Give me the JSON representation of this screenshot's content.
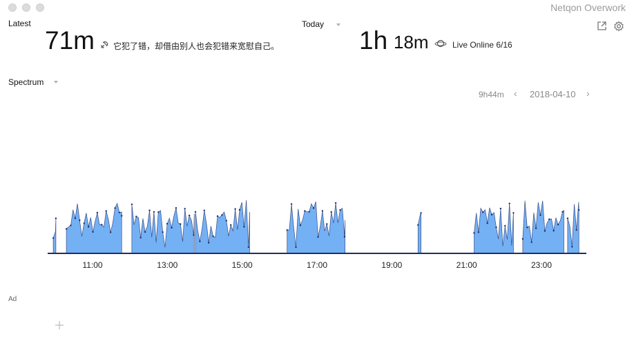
{
  "window": {
    "title": "Netqon Overwork"
  },
  "header": {
    "latest_label": "Latest",
    "latest_value": "71m",
    "latest_quote": "它犯了错，却借由别人也会犯错来宽慰自己。",
    "today_label": "Today",
    "today_hours": "1h",
    "today_minutes": "18m",
    "live_online": "Live Online 6/16"
  },
  "spectrum": {
    "label": "Spectrum",
    "duration": "9h44m",
    "date": "2018-04-10"
  },
  "chart_data": {
    "type": "area",
    "x_unit": "hour",
    "x_range": [
      9.8,
      24.2
    ],
    "tick_labels": [
      "11:00",
      "13:00",
      "15:00",
      "17:00",
      "19:00",
      "21:00",
      "23:00"
    ],
    "tick_hours": [
      11,
      13,
      15,
      17,
      19,
      21,
      23
    ],
    "y_range": [
      0,
      1
    ],
    "active_intervals": [
      [
        9.95,
        10.02
      ],
      [
        10.3,
        11.78
      ],
      [
        12.05,
        13.72
      ],
      [
        13.75,
        15.2
      ],
      [
        16.2,
        17.75
      ],
      [
        19.7,
        19.78
      ],
      [
        21.2,
        22.25
      ],
      [
        22.5,
        23.6
      ],
      [
        23.7,
        24.0
      ]
    ],
    "colors": {
      "fill": "#74b0f4",
      "stroke": "#3a4d86",
      "baseline": "#1e2d63"
    }
  },
  "ad": {
    "label": "Ad"
  }
}
